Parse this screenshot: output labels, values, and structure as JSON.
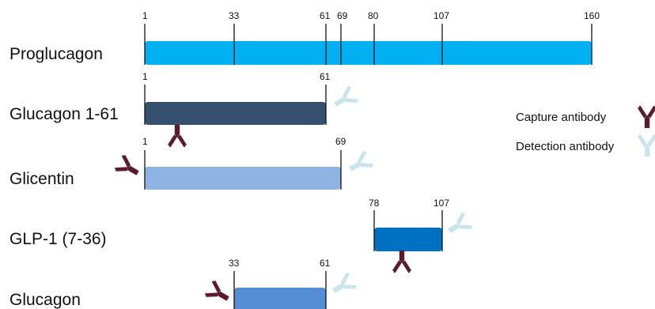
{
  "legend": {
    "capture_label": "Capture antibody",
    "detection_label": "Detection antibody",
    "capture_color": "#5c1a2a",
    "detection_color": "#c9e4ea"
  },
  "rows": [
    {
      "label": "Proglucagon",
      "start": 1,
      "end": 160,
      "color": "#00b0f0",
      "ticks": [
        "1",
        "33",
        "61",
        "69",
        "80",
        "107",
        "160"
      ],
      "tick_values": [
        1,
        33,
        61,
        69,
        80,
        107,
        160
      ]
    },
    {
      "label": "Glucagon 1-61",
      "start": 1,
      "end": 61,
      "color": "#34506e",
      "ticks": [
        "1",
        "61"
      ],
      "tick_values": [
        1,
        61
      ]
    },
    {
      "label": "Glicentin",
      "start": 1,
      "end": 69,
      "color": "#8db4e2",
      "ticks": [
        "1",
        "69"
      ],
      "tick_values": [
        1,
        69
      ]
    },
    {
      "label": "GLP-1 (7-36)",
      "start": 78,
      "end": 107,
      "color": "#0070c0",
      "ticks": [
        "78",
        "107"
      ],
      "tick_values": [
        78,
        107
      ]
    },
    {
      "label": "Glucagon",
      "start": 33,
      "end": 61,
      "color": "#558ed5",
      "ticks": [
        "33",
        "61"
      ],
      "tick_values": [
        33,
        61
      ]
    }
  ]
}
